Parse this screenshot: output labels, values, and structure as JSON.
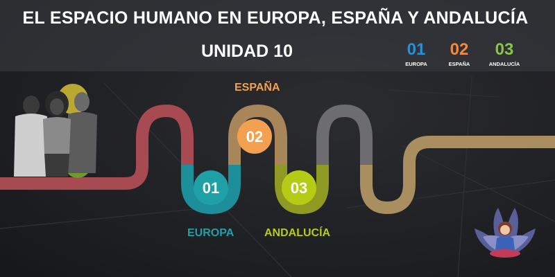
{
  "header": {
    "title": "EL ESPACIO HUMANO EN EUROPA, ESPAÑA Y ANDALUCÍA",
    "subtitle": "UNIDAD 10"
  },
  "legend": [
    {
      "num": "01",
      "label": "EUROPA",
      "color": "#2a8fd6"
    },
    {
      "num": "02",
      "label": "ESPAÑA",
      "color": "#f08a3c"
    },
    {
      "num": "03",
      "label": "ANDALUCÍA",
      "color": "#8bc34a"
    }
  ],
  "steps": [
    {
      "num": "01",
      "label": "EUROPA",
      "color": "#1fa0a6"
    },
    {
      "num": "02",
      "label": "ESPAÑA",
      "color": "#f3a050"
    },
    {
      "num": "03",
      "label": "ANDALUCÍA",
      "color": "#b5cc17"
    }
  ],
  "colors": {
    "path_red": "#a84a52",
    "path_teal": "#1c8f9a",
    "path_tan": "#a9855a",
    "path_olive": "#8e9a22",
    "path_gray": "#6d6d6f",
    "path_khaki": "#a98f5f"
  },
  "images": [
    "students-photo",
    "meditating-teacher-avatar"
  ]
}
